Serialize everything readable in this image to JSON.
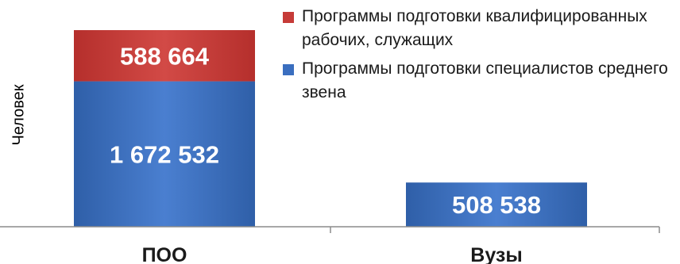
{
  "chart_data": {
    "type": "bar",
    "stacked": true,
    "categories": [
      "ПОО",
      "Вузы"
    ],
    "ylabel": "Человек",
    "series": [
      {
        "name": "Программы подготовки специалистов среднего звена",
        "values": [
          1672532,
          508538
        ],
        "labels": [
          "1 672 532",
          "508 538"
        ],
        "color": "#3a6ebf"
      },
      {
        "name": "Программы подготовки квалифицированных рабочих, служащих",
        "values": [
          588664,
          0
        ],
        "labels": [
          "588 664",
          ""
        ],
        "color": "#c63b38"
      }
    ],
    "legend_position": "top-right",
    "grid": false
  }
}
